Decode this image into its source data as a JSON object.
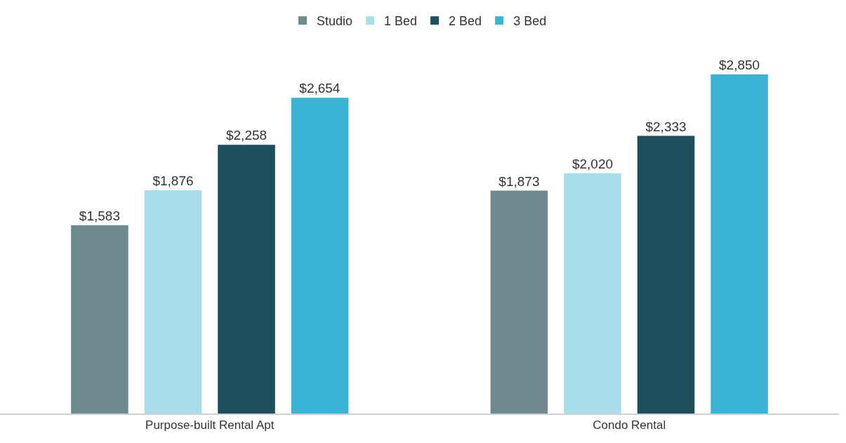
{
  "chart_data": {
    "type": "bar",
    "categories": [
      "Purpose-built Rental Apt",
      "Condo Rental"
    ],
    "series": [
      {
        "name": "Studio",
        "color": "#6e8a8f",
        "values": [
          1583,
          1873
        ],
        "value_labels": [
          "$1,583",
          "$1,873"
        ]
      },
      {
        "name": "1 Bed",
        "color": "#a9dde9",
        "values": [
          1876,
          2020
        ],
        "value_labels": [
          "$1,876",
          "$2,020"
        ]
      },
      {
        "name": "2 Bed",
        "color": "#1d4f5c",
        "values": [
          2258,
          2333
        ],
        "value_labels": [
          "$2,258",
          "$2,333"
        ]
      },
      {
        "name": "3 Bed",
        "color": "#3ab4d4",
        "values": [
          2654,
          2850
        ],
        "value_labels": [
          "$2,654",
          "$2,850"
        ]
      }
    ],
    "legend": "top",
    "tick_labels": "x"
  }
}
